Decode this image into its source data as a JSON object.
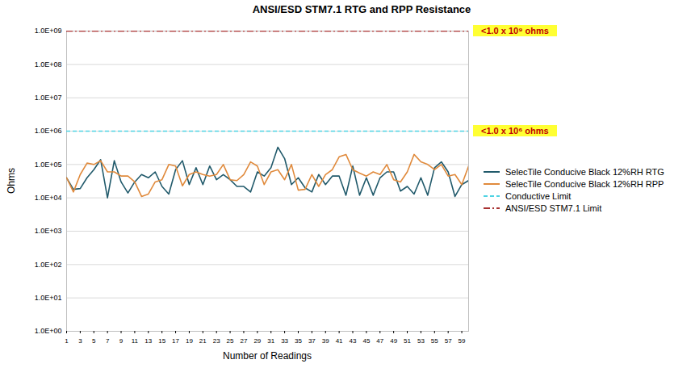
{
  "chart_data": {
    "type": "line",
    "title": "ANSI/ESD STM7.1 RTG and RPP Resistance",
    "x_label": "Number of Readings",
    "y_label": "Ohms",
    "x": [
      1,
      2,
      3,
      4,
      5,
      6,
      7,
      8,
      9,
      10,
      11,
      12,
      13,
      14,
      15,
      16,
      17,
      18,
      19,
      20,
      21,
      22,
      23,
      24,
      25,
      26,
      27,
      28,
      29,
      30,
      31,
      32,
      33,
      34,
      35,
      36,
      37,
      38,
      39,
      40,
      41,
      42,
      43,
      44,
      45,
      46,
      47,
      48,
      49,
      50,
      51,
      52,
      53,
      54,
      55,
      56,
      57,
      58,
      59,
      60
    ],
    "series": [
      {
        "name": "SelecTile Conducive Black 12%RH RTG",
        "color": "#215a6b",
        "line_style": "solid",
        "values": [
          40000,
          18000,
          19000,
          40000,
          70000,
          140000,
          10000,
          130000,
          30000,
          14000,
          30000,
          50000,
          40000,
          60000,
          22000,
          13000,
          70000,
          130000,
          25000,
          80000,
          25000,
          90000,
          35000,
          50000,
          35000,
          22000,
          22000,
          15000,
          60000,
          45000,
          80000,
          330000,
          150000,
          25000,
          40000,
          20000,
          15000,
          50000,
          25000,
          45000,
          45000,
          12000,
          90000,
          12000,
          40000,
          12000,
          40000,
          60000,
          60000,
          16000,
          22000,
          13000,
          40000,
          12000,
          80000,
          120000,
          60000,
          11000,
          25000,
          33000
        ]
      },
      {
        "name": "SelecTile Conducive Black 12%RH RPP",
        "color": "#e08a3c",
        "line_style": "solid",
        "values": [
          40000,
          15000,
          50000,
          110000,
          100000,
          130000,
          60000,
          60000,
          45000,
          45000,
          30000,
          11000,
          13000,
          30000,
          35000,
          100000,
          90000,
          23000,
          50000,
          60000,
          50000,
          45000,
          50000,
          100000,
          35000,
          33000,
          50000,
          120000,
          90000,
          25000,
          60000,
          70000,
          35000,
          100000,
          17000,
          18000,
          50000,
          22000,
          50000,
          70000,
          170000,
          200000,
          70000,
          55000,
          45000,
          60000,
          50000,
          100000,
          35000,
          30000,
          60000,
          200000,
          120000,
          100000,
          70000,
          100000,
          45000,
          50000,
          25000,
          90000
        ]
      }
    ],
    "reference_lines": [
      {
        "name": "Conductive Limit",
        "value": 1000000,
        "color": "#4fd3e3",
        "line_style": "dashed",
        "annotation": "<1.0 x 10⁶ ohms"
      },
      {
        "name": "ANSI/ESD STM7.1 Limit",
        "value": 1000000000,
        "color": "#a83232",
        "line_style": "dashdot",
        "annotation": "<1.0 x 10⁹ ohms"
      }
    ],
    "xlim": [
      1,
      60
    ],
    "xticks": [
      1,
      3,
      5,
      7,
      9,
      11,
      13,
      15,
      17,
      19,
      21,
      23,
      25,
      27,
      29,
      31,
      33,
      35,
      37,
      39,
      41,
      43,
      45,
      47,
      49,
      51,
      53,
      55,
      57,
      59
    ],
    "ylim": [
      1,
      1000000000
    ],
    "yticks": [
      {
        "value": 1,
        "label": "1.0E+00"
      },
      {
        "value": 10,
        "label": "1.0E+01"
      },
      {
        "value": 100,
        "label": "1.0E+02"
      },
      {
        "value": 1000,
        "label": "1.0E+03"
      },
      {
        "value": 10000,
        "label": "1.0E+04"
      },
      {
        "value": 100000,
        "label": "1.0E+05"
      },
      {
        "value": 1000000,
        "label": "1.0E+06"
      },
      {
        "value": 10000000,
        "label": "1.0E+07"
      },
      {
        "value": 100000000,
        "label": "1.0E+08"
      },
      {
        "value": 1000000000,
        "label": "1.0E+09"
      }
    ],
    "log": "y",
    "grid": true,
    "legend": "right"
  }
}
